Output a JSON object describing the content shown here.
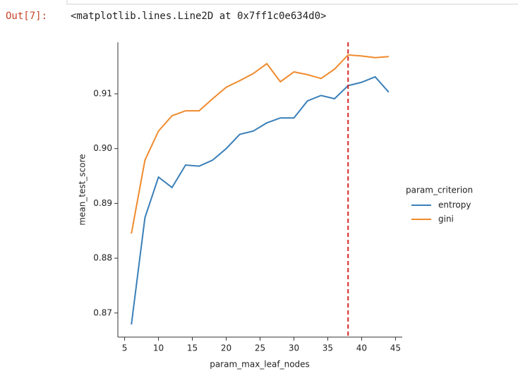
{
  "output_prompt": "Out[7]:",
  "output_text": "<matplotlib.lines.Line2D at 0x7ff1c0e634d0>",
  "chart_data": {
    "type": "line",
    "x_label": "param_max_leaf_nodes",
    "y_label": "mean_test_score",
    "legend_title": "param_criterion",
    "legend_position": "right",
    "x": [
      6,
      8,
      10,
      12,
      14,
      16,
      18,
      20,
      22,
      24,
      26,
      28,
      30,
      32,
      34,
      36,
      38,
      40,
      42,
      44
    ],
    "series": [
      {
        "name": "entropy",
        "color": "#3a7fb8",
        "values": [
          0.8679,
          0.8874,
          0.8948,
          0.8929,
          0.897,
          0.8968,
          0.8979,
          0.9,
          0.9026,
          0.9032,
          0.9047,
          0.9056,
          0.9056,
          0.9087,
          0.9097,
          0.9091,
          0.9115,
          0.9121,
          0.9131,
          0.9103
        ]
      },
      {
        "name": "gini",
        "color": "#f08a2c",
        "values": [
          0.8845,
          0.8979,
          0.9032,
          0.906,
          0.9069,
          0.9069,
          0.9091,
          0.9112,
          0.9124,
          0.9137,
          0.9155,
          0.9122,
          0.914,
          0.9135,
          0.9128,
          0.9145,
          0.9171,
          0.9169,
          0.9166,
          0.9168
        ]
      }
    ],
    "vline": {
      "x": 38,
      "color": "#d62728"
    },
    "xlim": [
      4,
      46
    ],
    "ylim": [
      0.8656,
      0.9194
    ],
    "xticks": [
      5,
      10,
      15,
      20,
      25,
      30,
      35,
      40,
      45
    ],
    "yticks": [
      0.87,
      0.88,
      0.89,
      {
        "value": 0.9,
        "label": "0.90"
      },
      0.91
    ]
  }
}
